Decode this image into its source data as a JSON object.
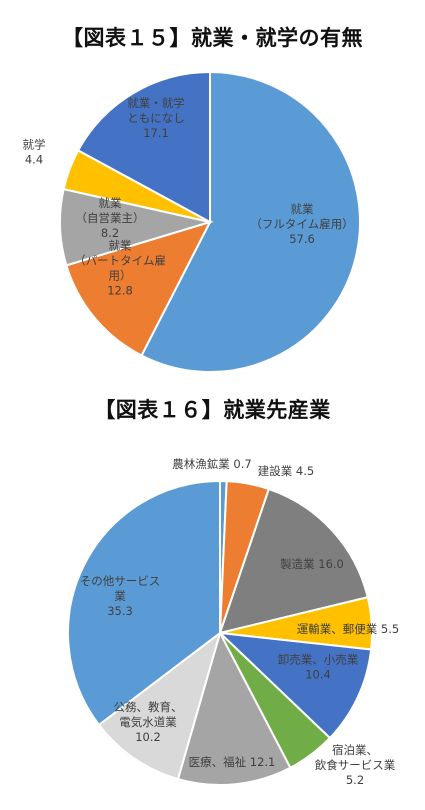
{
  "chart_data": [
    {
      "type": "pie",
      "title": "【図表１５】就業・就学の有無",
      "slices": [
        {
          "label_lines": [
            "就業",
            "（フルタイム雇用）"
          ],
          "value": 57.6,
          "value_text": "57.6",
          "color": "#5b9bd5"
        },
        {
          "label_lines": [
            "就業",
            "（パートタイム雇",
            "用）"
          ],
          "value": 12.8,
          "value_text": "12.8",
          "color": "#ed7d31"
        },
        {
          "label_lines": [
            "就業",
            "（自営業主）"
          ],
          "value": 8.2,
          "value_text": "8.2",
          "color": "#a5a5a5"
        },
        {
          "label_lines": [
            "就学"
          ],
          "value": 4.4,
          "value_text": "4.4",
          "color": "#ffc000"
        },
        {
          "label_lines": [
            "就業・就学",
            "ともになし"
          ],
          "value": 17.1,
          "value_text": "17.1",
          "color": "#4472c4"
        }
      ]
    },
    {
      "type": "pie",
      "title": "【図表１６】就業先産業",
      "slices": [
        {
          "label_lines": [
            "農林漁鉱業"
          ],
          "value": 0.7,
          "value_text": "0.7",
          "color": "#5b9bd5"
        },
        {
          "label_lines": [
            "建設業"
          ],
          "value": 4.5,
          "value_text": "4.5",
          "color": "#ed7d31"
        },
        {
          "label_lines": [
            "製造業"
          ],
          "value": 16.0,
          "value_text": "16.0",
          "color": "#7f7f7f"
        },
        {
          "label_lines": [
            "運輸業、郵便業"
          ],
          "value": 5.5,
          "value_text": "5.5",
          "color": "#ffc000"
        },
        {
          "label_lines": [
            "卸売業、小売業"
          ],
          "value": 10.4,
          "value_text": "10.4",
          "color": "#4472c4"
        },
        {
          "label_lines": [
            "宿泊業、",
            "飲食サービス業"
          ],
          "value": 5.2,
          "value_text": "5.2",
          "color": "#70ad47"
        },
        {
          "label_lines": [
            "医療、福祉"
          ],
          "value": 12.1,
          "value_text": "12.1",
          "color": "#a5a5a5"
        },
        {
          "label_lines": [
            "公務、教育、",
            "電気水道業"
          ],
          "value": 10.2,
          "value_text": "10.2",
          "color": "#d9d9d9"
        },
        {
          "label_lines": [
            "その他サービス",
            "業"
          ],
          "value": 35.3,
          "value_text": "35.3",
          "color": "#5b9bd5"
        }
      ]
    }
  ]
}
